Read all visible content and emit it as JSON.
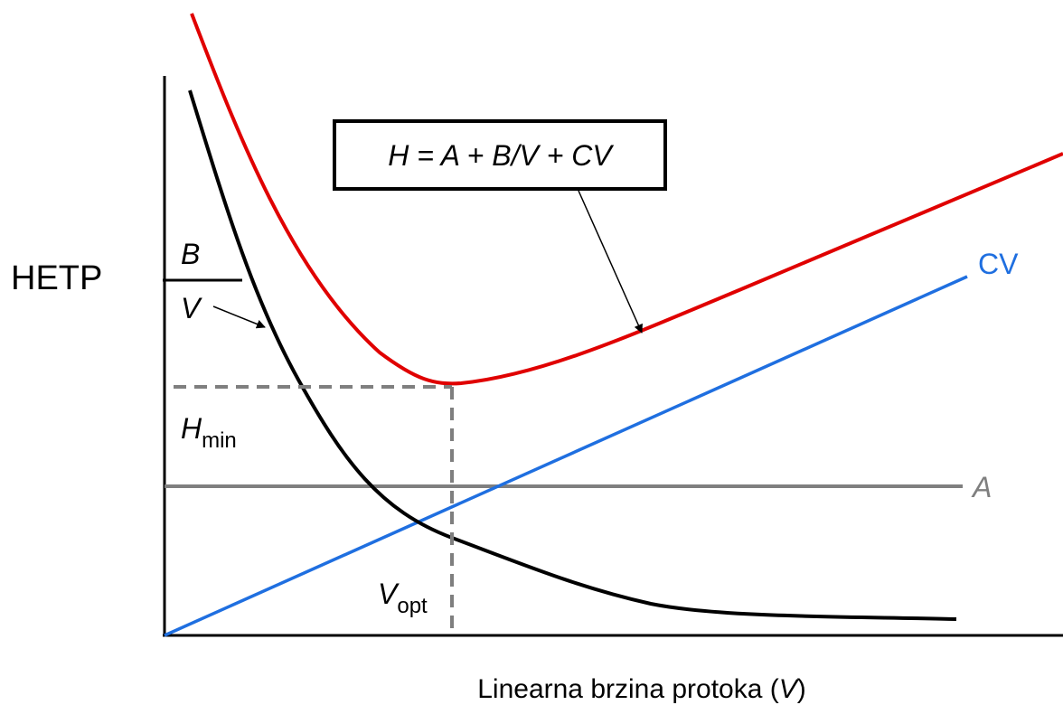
{
  "y_axis_label": "HETP",
  "x_axis_label": {
    "text": "Linearna brzina protoka (",
    "var": "V",
    "close": ")"
  },
  "equation": "H = A + B/V + CV",
  "b_term": {
    "numerator": "B",
    "denominator": "V"
  },
  "c_term": "CV",
  "a_term": "A",
  "h_min": {
    "base": "H",
    "sub": "min"
  },
  "v_opt": {
    "base": "V",
    "sub": "opt"
  }
}
